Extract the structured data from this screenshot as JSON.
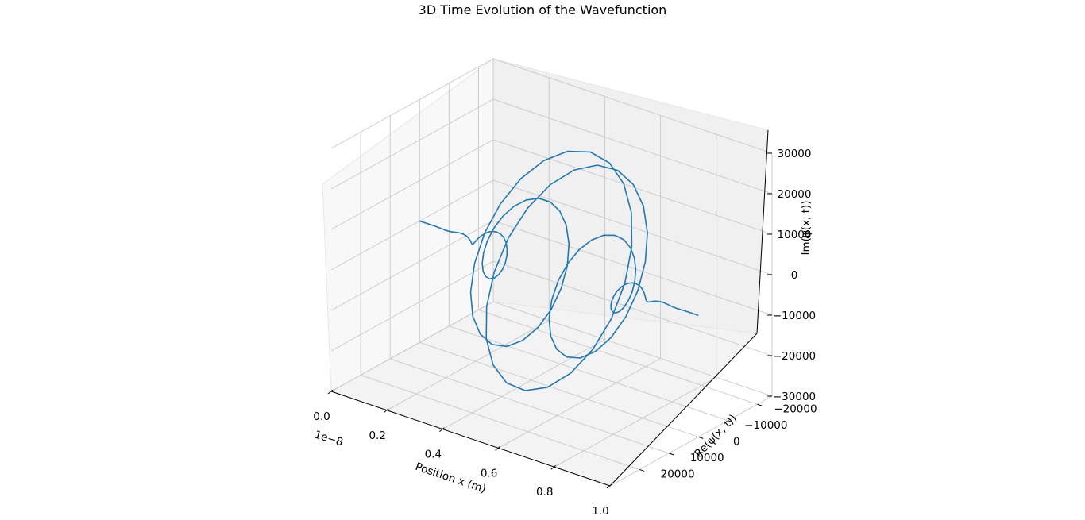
{
  "chart_data": {
    "type": "line",
    "projection": "3d",
    "title": "3D Time Evolution of the Wavefunction",
    "xlabel": "Position x (m)",
    "ylabel": "Re(ψ(x, t))",
    "zlabel": "Im(ψ(x, t))",
    "x_offset_label": "1e−8",
    "xlim": [
      0.0,
      1.0
    ],
    "ylim": [
      -25000,
      30000
    ],
    "zlim": [
      -30000,
      30000
    ],
    "x_ticks": [
      "0.0",
      "0.2",
      "0.4",
      "0.6",
      "0.8",
      "1.0"
    ],
    "x_tick_values": [
      0.0,
      0.2,
      0.4,
      0.6,
      0.8,
      1.0
    ],
    "y_ticks": [
      "−20000",
      "−10000",
      "0",
      "10000",
      "20000"
    ],
    "y_tick_values": [
      -20000,
      -10000,
      0,
      10000,
      20000
    ],
    "z_ticks": [
      "−30000",
      "−20000",
      "−10000",
      "0",
      "10000",
      "20000",
      "30000"
    ],
    "z_tick_values": [
      -30000,
      -20000,
      -10000,
      0,
      10000,
      20000,
      30000
    ],
    "grid": true,
    "series_color": "#1f77b4",
    "series": [
      {
        "x_start": 0.0,
        "x_end": 1.0,
        "num_points": 200,
        "wave_center": 0.5,
        "wave_width": 0.12,
        "amplitude": 28000,
        "oscillations": 9.5
      }
    ]
  }
}
